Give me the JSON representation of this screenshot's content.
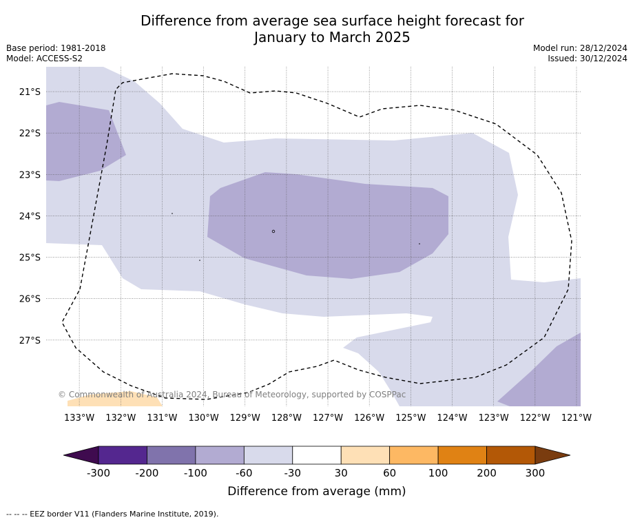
{
  "title_line1": "Difference from average sea surface height forecast for",
  "title_line2": "January to March 2025",
  "base_period": "Base period: 1981-2018",
  "model": "Model: ACCESS-S2",
  "model_run": "Model run: 28/12/2024",
  "issued": "Issued: 30/12/2024",
  "copyright": "© Commonwealth of Australia 2024, Bureau of Meteorology, supported by COSPPac",
  "footnote": "-- -- -- EEZ border V11 (Flanders Marine Institute, 2019).",
  "map": {
    "lat_labels": [
      "21°S",
      "22°S",
      "23°S",
      "24°S",
      "25°S",
      "26°S",
      "27°S"
    ],
    "lon_labels": [
      "133°W",
      "132°W",
      "131°W",
      "130°W",
      "129°W",
      "128°W",
      "127°W",
      "126°W",
      "125°W",
      "124°W",
      "123°W",
      "122°W",
      "121°W"
    ],
    "lat_values": [
      -21,
      -22,
      -23,
      -24,
      -25,
      -26,
      -27
    ],
    "lon_values": [
      -133,
      -132,
      -131,
      -130,
      -129,
      -128,
      -127,
      -126,
      -125,
      -124,
      -123,
      -122,
      -121
    ],
    "extent": {
      "lon_min": -133.8,
      "lon_max": -120.9,
      "lat_min": -28.6,
      "lat_max": -20.4
    },
    "gridlines": true,
    "eez_border_style": "dashed"
  },
  "colorbar": {
    "label": "Difference from average (mm)",
    "tick_labels": [
      "-300",
      "-200",
      "-100",
      "-60",
      "-30",
      "30",
      "60",
      "100",
      "200",
      "300"
    ],
    "extend_low_color": "#3f0b4f",
    "extend_high_color": "#7a3c0f",
    "bin_colors": [
      "#54278f",
      "#8073ac",
      "#b2abd2",
      "#d8daeb",
      "#ffffff",
      "#fee0b6",
      "#fdb863",
      "#e08214",
      "#b35806"
    ]
  },
  "chart_data": {
    "type": "heatmap",
    "title": "Difference from average sea surface height forecast for January to March 2025",
    "xlabel": "",
    "ylabel": "",
    "colorbar_label": "Difference from average (mm)",
    "x_range": [
      -133.8,
      -120.9
    ],
    "y_range": [
      -28.6,
      -20.4
    ],
    "regions": [
      {
        "category": "-60 to -30",
        "color": "#d8daeb"
      },
      {
        "category": "-100 to -60",
        "color": "#b2abd2"
      },
      {
        "category": "-30 to 30",
        "color": "#ffffff"
      },
      {
        "category": "30 to 60",
        "color": "#fee0b6"
      }
    ]
  }
}
